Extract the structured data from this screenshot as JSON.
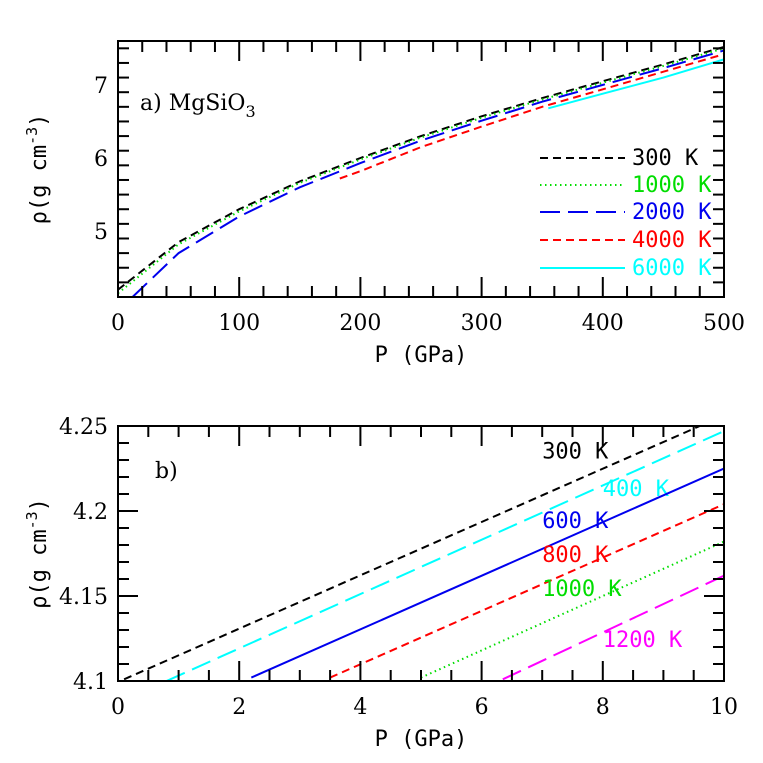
{
  "chart_data": [
    {
      "type": "line",
      "panel_label": "a) MgSiO",
      "panel_label_sub": "3",
      "xlabel": "P (GPa)",
      "ylabel": "ρ(g cm",
      "ylabel_sup": "-3",
      "ylabel_end": ")",
      "xlim": [
        0,
        500
      ],
      "ylim": [
        4.1,
        7.6
      ],
      "xticks": [
        0,
        100,
        200,
        300,
        400,
        500
      ],
      "yticks": [
        5,
        6,
        7
      ],
      "legend": "right",
      "series": [
        {
          "name": "300 K",
          "color": "#000000",
          "style": "dashed",
          "x": [
            0,
            50,
            100,
            150,
            200,
            250,
            300,
            350,
            400,
            450,
            500
          ],
          "y": [
            4.2,
            4.85,
            5.3,
            5.68,
            6.0,
            6.3,
            6.57,
            6.82,
            7.05,
            7.28,
            7.52
          ]
        },
        {
          "name": "1000 K",
          "color": "#00dd00",
          "style": "dotted",
          "x": [
            0,
            50,
            100,
            150,
            200,
            250,
            300,
            350,
            400,
            450,
            500
          ],
          "y": [
            4.15,
            4.82,
            5.27,
            5.66,
            5.98,
            6.28,
            6.55,
            6.8,
            7.03,
            7.26,
            7.5
          ]
        },
        {
          "name": "2000 K",
          "color": "#0000ee",
          "style": "long-dash",
          "x": [
            12,
            50,
            100,
            150,
            200,
            250,
            300,
            350,
            400,
            450,
            500
          ],
          "y": [
            4.1,
            4.7,
            5.2,
            5.6,
            5.93,
            6.24,
            6.51,
            6.77,
            7.0,
            7.23,
            7.47
          ]
        },
        {
          "name": "4000 K",
          "color": "#ff0000",
          "style": "dashed",
          "x": [
            183,
            200,
            250,
            300,
            350,
            400,
            450,
            500
          ],
          "y": [
            5.72,
            5.82,
            6.15,
            6.43,
            6.7,
            6.94,
            7.18,
            7.42
          ]
        },
        {
          "name": "6000 K",
          "color": "#00ffff",
          "style": "solid",
          "x": [
            355,
            400,
            450,
            500
          ],
          "y": [
            6.68,
            6.88,
            7.1,
            7.35
          ]
        }
      ]
    },
    {
      "type": "line",
      "panel_label": "b)",
      "xlabel": "P (GPa)",
      "ylabel": "ρ(g cm",
      "ylabel_sup": "-3",
      "ylabel_end": ")",
      "xlim": [
        0,
        10
      ],
      "ylim": [
        4.1,
        4.25
      ],
      "xticks": [
        0,
        2,
        4,
        6,
        8,
        10
      ],
      "yticks": [
        4.1,
        4.15,
        4.2,
        4.25
      ],
      "legend": "inline",
      "series": [
        {
          "name": "300 K",
          "color": "#000000",
          "style": "dashed",
          "x": [
            0.1,
            9.6
          ],
          "y": [
            4.101,
            4.25
          ],
          "label_at": [
            7,
            4.235
          ]
        },
        {
          "name": "400 K",
          "color": "#00ffff",
          "style": "long-dash",
          "x": [
            0.8,
            10
          ],
          "y": [
            4.1,
            4.247
          ],
          "label_at": [
            8,
            4.213
          ]
        },
        {
          "name": "600 K",
          "color": "#0000ee",
          "style": "solid",
          "x": [
            2.2,
            10
          ],
          "y": [
            4.102,
            4.225
          ],
          "label_at": [
            7,
            4.194
          ]
        },
        {
          "name": "800 K",
          "color": "#ff0000",
          "style": "dashed",
          "x": [
            3.5,
            10
          ],
          "y": [
            4.102,
            4.204
          ],
          "label_at": [
            7,
            4.174
          ]
        },
        {
          "name": "1000 K",
          "color": "#00dd00",
          "style": "dotted",
          "x": [
            5,
            10
          ],
          "y": [
            4.102,
            4.182
          ],
          "label_at": [
            7,
            4.154
          ]
        },
        {
          "name": "1200 K",
          "color": "#ff00ff",
          "style": "long-dash",
          "x": [
            6.35,
            10
          ],
          "y": [
            4.101,
            4.162
          ],
          "label_at": [
            8,
            4.124
          ]
        }
      ]
    }
  ]
}
